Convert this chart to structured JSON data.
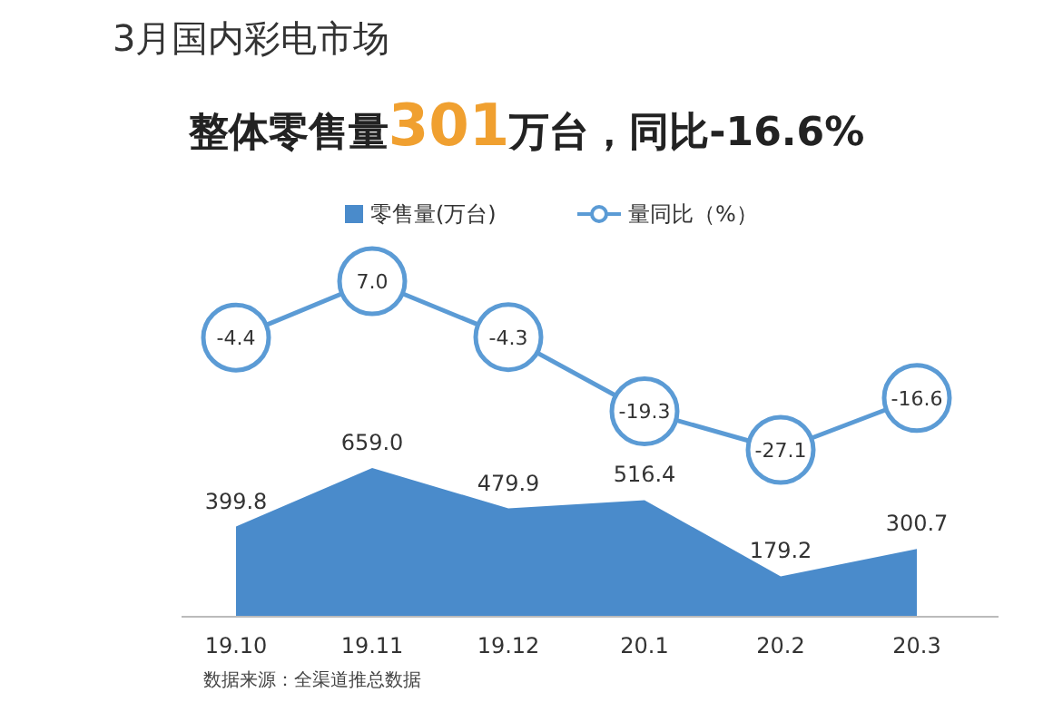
{
  "chart_data": [
    {
      "type": "line",
      "title": "3月国内彩电市场",
      "subtitle": "整体零售量301万台，同比-16.6%",
      "categories": [
        null,
        null,
        null,
        null,
        null,
        null
      ],
      "series": [
        {
          "name": "量同比（%）",
          "color": "#5b9bd5",
          "values": [
            -4.4,
            7.0,
            -4.3,
            -19.3,
            -27.1,
            -16.6
          ],
          "value_labels": [
            "-4.4",
            "7.0",
            "-4.3",
            "-19.3",
            "-27.1",
            "-16.6"
          ]
        }
      ],
      "marker": "circle",
      "line_style": "solid",
      "legend": "top"
    },
    {
      "type": "area",
      "categories": [
        "19.10",
        "19.11",
        "19.12",
        "20.1",
        "20.2",
        "20.3"
      ],
      "series": [
        {
          "name": "零售量(万台)",
          "color": "#4a8bcb",
          "values": [
            399.8,
            659.0,
            479.9,
            516.4,
            179.2,
            300.7
          ],
          "value_labels": [
            "399.8",
            "659.0",
            "479.9",
            "516.4",
            "179.2",
            "300.7"
          ]
        }
      ],
      "legend": "top",
      "annotations": [
        "数据来源：全渠道推总数据"
      ]
    }
  ]
}
